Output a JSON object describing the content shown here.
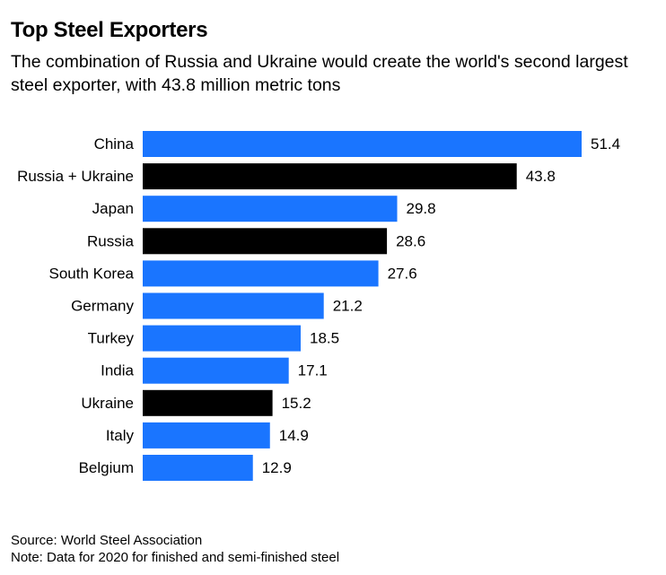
{
  "title": "Top Steel Exporters",
  "subtitle": "The combination of Russia and Ukraine would create the world's second largest steel exporter, with 43.8 million metric tons",
  "source": "Source: World Steel Association",
  "note": "Note: Data for 2020 for finished and semi-finished steel",
  "colors": {
    "highlight": "#000000",
    "default": "#1a75ff"
  },
  "chart_data": {
    "type": "bar",
    "orientation": "horizontal",
    "categories": [
      "China",
      "Russia + Ukraine",
      "Japan",
      "Russia",
      "South Korea",
      "Germany",
      "Turkey",
      "India",
      "Ukraine",
      "Italy",
      "Belgium"
    ],
    "values": [
      51.4,
      43.8,
      29.8,
      28.6,
      27.6,
      21.2,
      18.5,
      17.1,
      15.2,
      14.9,
      12.9
    ],
    "value_labels": [
      "51.4",
      "43.8",
      "29.8",
      "28.6",
      "27.6",
      "21.2",
      "18.5",
      "17.1",
      "15.2",
      "14.9",
      "12.9"
    ],
    "highlighted": [
      false,
      true,
      false,
      true,
      false,
      false,
      false,
      false,
      true,
      false,
      false
    ],
    "xlim": [
      0,
      51.4
    ],
    "grid": false,
    "legend": "none"
  }
}
